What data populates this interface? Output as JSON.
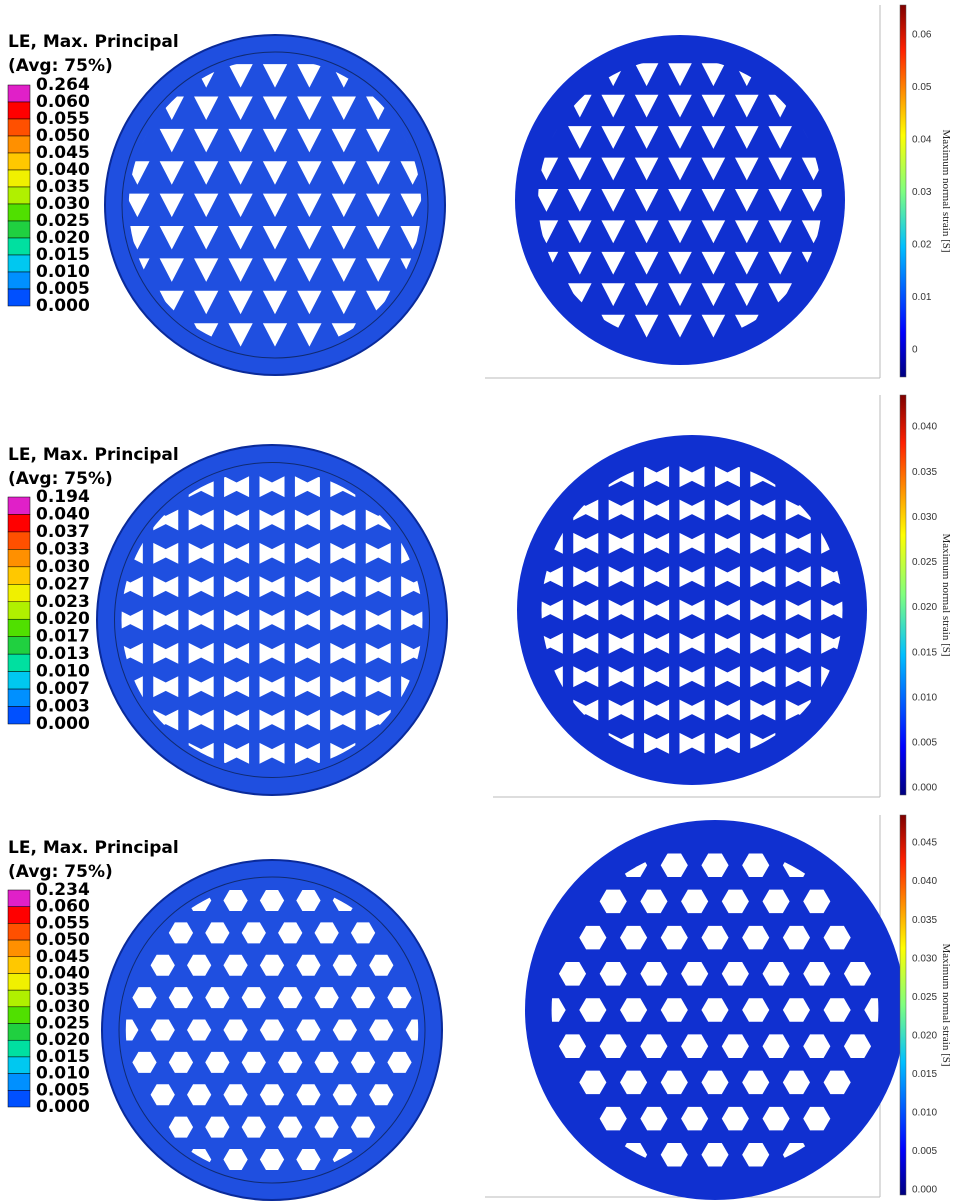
{
  "panels": [
    {
      "legend": {
        "title": "LE, Max. Principal",
        "subtitle": "(Avg: 75%)",
        "labels": [
          "0.264",
          "0.060",
          "0.055",
          "0.050",
          "0.045",
          "0.040",
          "0.035",
          "0.030",
          "0.025",
          "0.020",
          "0.015",
          "0.010",
          "0.005",
          "0.000"
        ]
      },
      "colorbar": {
        "axis_label": "Maximum normal strain [S]",
        "ticks": [
          "0.06",
          "0.05",
          "0.04",
          "0.03",
          "0.02",
          "0.01",
          "0"
        ]
      }
    },
    {
      "legend": {
        "title": "LE, Max. Principal",
        "subtitle": "(Avg: 75%)",
        "labels": [
          "0.194",
          "0.040",
          "0.037",
          "0.033",
          "0.030",
          "0.027",
          "0.023",
          "0.020",
          "0.017",
          "0.013",
          "0.010",
          "0.007",
          "0.003",
          "0.000"
        ]
      },
      "colorbar": {
        "axis_label": "Maximum normal strain [S]",
        "ticks": [
          "0.040",
          "0.035",
          "0.030",
          "0.025",
          "0.020",
          "0.015",
          "0.010",
          "0.005",
          "0.000"
        ]
      }
    },
    {
      "legend": {
        "title": "LE, Max. Principal",
        "subtitle": "(Avg: 75%)",
        "labels": [
          "0.234",
          "0.060",
          "0.055",
          "0.050",
          "0.045",
          "0.040",
          "0.035",
          "0.030",
          "0.025",
          "0.020",
          "0.015",
          "0.010",
          "0.005",
          "0.000"
        ]
      },
      "colorbar": {
        "axis_label": "Maximum normal strain [S]",
        "ticks": [
          "0.045",
          "0.040",
          "0.035",
          "0.030",
          "0.025",
          "0.020",
          "0.015",
          "0.010",
          "0.005",
          "0.000"
        ]
      }
    }
  ]
}
